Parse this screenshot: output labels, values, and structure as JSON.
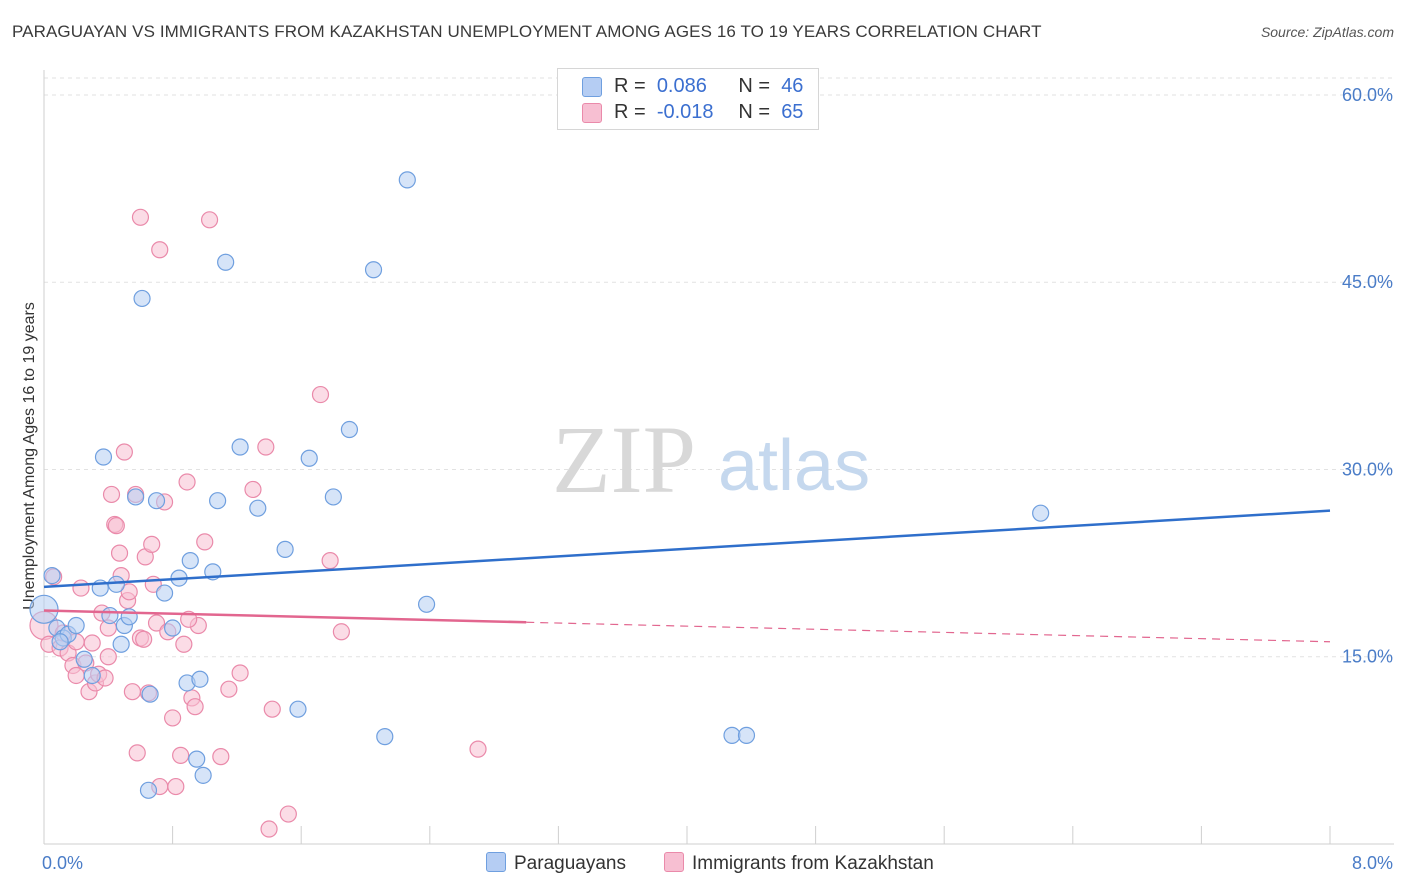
{
  "header": {
    "title": "PARAGUAYAN VS IMMIGRANTS FROM KAZAKHSTAN UNEMPLOYMENT AMONG AGES 16 TO 19 YEARS CORRELATION CHART",
    "source": "Source: ZipAtlas.com"
  },
  "watermark": {
    "zip": "ZIP",
    "atlas": "atlas"
  },
  "legend": {
    "r_label": "R =",
    "n_label": "N =",
    "rows": [
      {
        "r": "0.086",
        "n": "46"
      },
      {
        "r": "-0.018",
        "n": "65"
      }
    ]
  },
  "colors": {
    "blue_fill": "#b5cdf3",
    "blue_stroke": "#6f9fdf",
    "blue_line": "#2f6fcb",
    "pink_fill": "#f7bfd2",
    "pink_stroke": "#ea8aaa",
    "pink_line": "#e2668f",
    "tick_text": "#4a7cc7",
    "grid": "#e2e2e2"
  },
  "chart_data": {
    "type": "scatter",
    "title": "PARAGUAYAN VS IMMIGRANTS FROM KAZAKHSTAN UNEMPLOYMENT AMONG AGES 16 TO 19 YEARS CORRELATION CHART",
    "xlabel": "",
    "ylabel": "Unemployment Among Ages 16 to 19 years",
    "xlim": [
      0,
      8.0
    ],
    "ylim": [
      0,
      62
    ],
    "x_tick_labels": [
      "0.0%",
      "8.0%"
    ],
    "y_ticks": [
      15,
      30,
      45,
      60
    ],
    "y_tick_labels": [
      "15.0%",
      "30.0%",
      "45.0%",
      "60.0%"
    ],
    "legend_position": "bottom",
    "series": [
      {
        "name": "Paraguayans",
        "r": 0.086,
        "n": 46,
        "trend": {
          "x0": 0.0,
          "y0": 20.6,
          "x1": 8.0,
          "y1": 26.7,
          "solid_until": 8.0
        },
        "points": [
          [
            0.0,
            18.8
          ],
          [
            0.05,
            21.5
          ],
          [
            0.08,
            17.3
          ],
          [
            0.12,
            16.5
          ],
          [
            0.15,
            16.8
          ],
          [
            0.2,
            17.5
          ],
          [
            0.25,
            14.8
          ],
          [
            0.3,
            13.5
          ],
          [
            0.35,
            20.5
          ],
          [
            0.37,
            31.0
          ],
          [
            0.41,
            18.3
          ],
          [
            0.45,
            20.8
          ],
          [
            0.48,
            16.0
          ],
          [
            0.5,
            17.5
          ],
          [
            0.53,
            18.2
          ],
          [
            0.57,
            27.8
          ],
          [
            0.61,
            43.7
          ],
          [
            0.65,
            4.3
          ],
          [
            0.66,
            12.0
          ],
          [
            0.7,
            27.5
          ],
          [
            0.75,
            20.1
          ],
          [
            0.8,
            17.3
          ],
          [
            0.84,
            21.3
          ],
          [
            0.89,
            12.9
          ],
          [
            0.91,
            22.7
          ],
          [
            0.95,
            6.8
          ],
          [
            0.97,
            13.2
          ],
          [
            0.99,
            5.5
          ],
          [
            1.05,
            21.8
          ],
          [
            1.08,
            27.5
          ],
          [
            1.13,
            46.6
          ],
          [
            1.22,
            31.8
          ],
          [
            1.33,
            26.9
          ],
          [
            1.5,
            23.6
          ],
          [
            1.58,
            10.8
          ],
          [
            1.65,
            30.9
          ],
          [
            1.8,
            27.8
          ],
          [
            1.9,
            33.2
          ],
          [
            2.05,
            46.0
          ],
          [
            2.12,
            8.6
          ],
          [
            2.26,
            53.2
          ],
          [
            2.38,
            19.2
          ],
          [
            4.28,
            8.7
          ],
          [
            4.37,
            8.7
          ],
          [
            6.2,
            26.5
          ],
          [
            0.1,
            16.2
          ]
        ]
      },
      {
        "name": "Immigrants from Kazakhstan",
        "r": -0.018,
        "n": 65,
        "trend": {
          "x0": 0.0,
          "y0": 18.7,
          "x1": 8.0,
          "y1": 16.2,
          "solid_until": 3.0
        },
        "points": [
          [
            0.0,
            17.5
          ],
          [
            0.03,
            16.0
          ],
          [
            0.06,
            21.4
          ],
          [
            0.1,
            15.7
          ],
          [
            0.12,
            16.9
          ],
          [
            0.15,
            15.3
          ],
          [
            0.18,
            14.3
          ],
          [
            0.2,
            16.2
          ],
          [
            0.23,
            20.5
          ],
          [
            0.26,
            14.5
          ],
          [
            0.28,
            12.2
          ],
          [
            0.3,
            16.1
          ],
          [
            0.32,
            12.9
          ],
          [
            0.34,
            13.6
          ],
          [
            0.36,
            18.5
          ],
          [
            0.38,
            13.3
          ],
          [
            0.4,
            15.0
          ],
          [
            0.42,
            28.0
          ],
          [
            0.44,
            25.6
          ],
          [
            0.45,
            25.5
          ],
          [
            0.47,
            23.3
          ],
          [
            0.48,
            21.5
          ],
          [
            0.5,
            31.4
          ],
          [
            0.52,
            19.5
          ],
          [
            0.53,
            20.2
          ],
          [
            0.55,
            12.2
          ],
          [
            0.57,
            28.0
          ],
          [
            0.58,
            7.3
          ],
          [
            0.6,
            16.5
          ],
          [
            0.62,
            16.4
          ],
          [
            0.63,
            23.0
          ],
          [
            0.65,
            12.1
          ],
          [
            0.67,
            24.0
          ],
          [
            0.68,
            20.8
          ],
          [
            0.7,
            17.7
          ],
          [
            0.72,
            4.6
          ],
          [
            0.75,
            27.4
          ],
          [
            0.77,
            17.0
          ],
          [
            0.8,
            10.1
          ],
          [
            0.82,
            4.6
          ],
          [
            0.85,
            7.1
          ],
          [
            0.87,
            16.0
          ],
          [
            0.89,
            29.0
          ],
          [
            0.92,
            11.7
          ],
          [
            0.94,
            11.0
          ],
          [
            0.96,
            17.5
          ],
          [
            1.0,
            24.2
          ],
          [
            1.03,
            50.0
          ],
          [
            1.1,
            7.0
          ],
          [
            1.15,
            12.4
          ],
          [
            1.22,
            13.7
          ],
          [
            1.3,
            28.4
          ],
          [
            1.38,
            31.8
          ],
          [
            1.4,
            1.2
          ],
          [
            1.42,
            10.8
          ],
          [
            1.52,
            2.4
          ],
          [
            1.72,
            36.0
          ],
          [
            1.78,
            22.7
          ],
          [
            1.85,
            17.0
          ],
          [
            2.7,
            7.6
          ],
          [
            0.6,
            50.2
          ],
          [
            0.72,
            47.6
          ],
          [
            0.2,
            13.5
          ],
          [
            0.9,
            18.0
          ],
          [
            0.4,
            17.3
          ]
        ]
      }
    ]
  },
  "bottom_legend": {
    "items": [
      {
        "label": "Paraguayans"
      },
      {
        "label": "Immigrants from Kazakhstan"
      }
    ]
  }
}
